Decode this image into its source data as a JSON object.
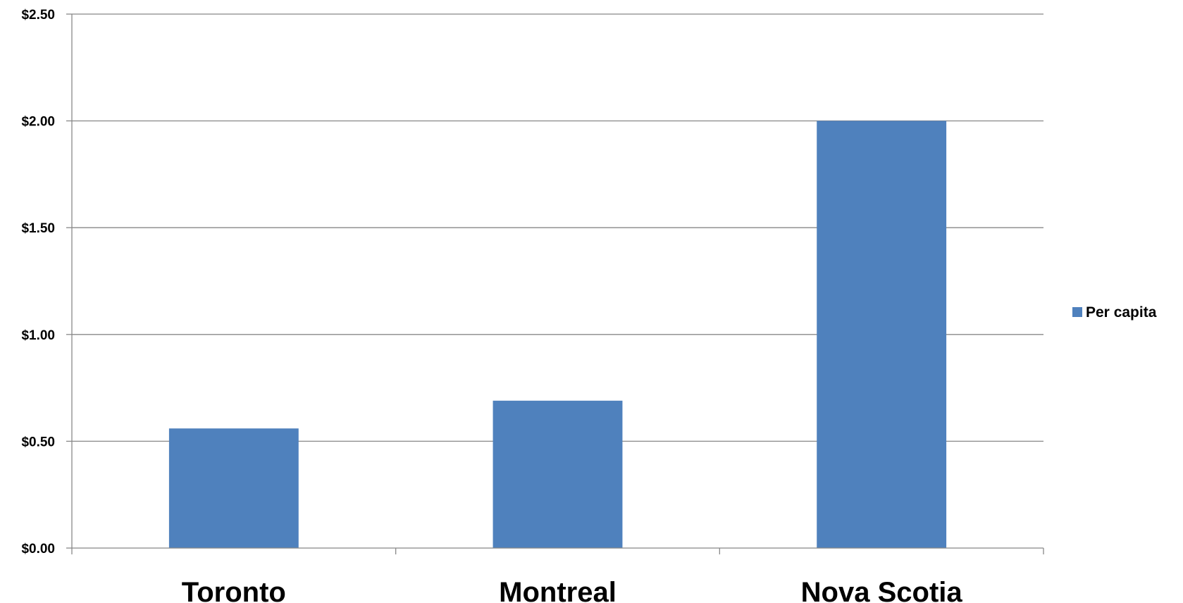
{
  "chart_data": {
    "type": "bar",
    "categories": [
      "Toronto",
      "Montreal",
      "Nova Scotia"
    ],
    "series": [
      {
        "name": "Per capita",
        "values": [
          0.56,
          0.69,
          2.0
        ],
        "color": "#4F81BD"
      }
    ],
    "ylim": [
      0,
      2.5
    ],
    "yticks": [
      0,
      0.5,
      1.0,
      1.5,
      2.0,
      2.5
    ],
    "ytick_labels": [
      "$0.00",
      "$0.50",
      "$1.00",
      "$1.50",
      "$2.00",
      "$2.50"
    ],
    "grid": true,
    "legend_position": "right"
  }
}
